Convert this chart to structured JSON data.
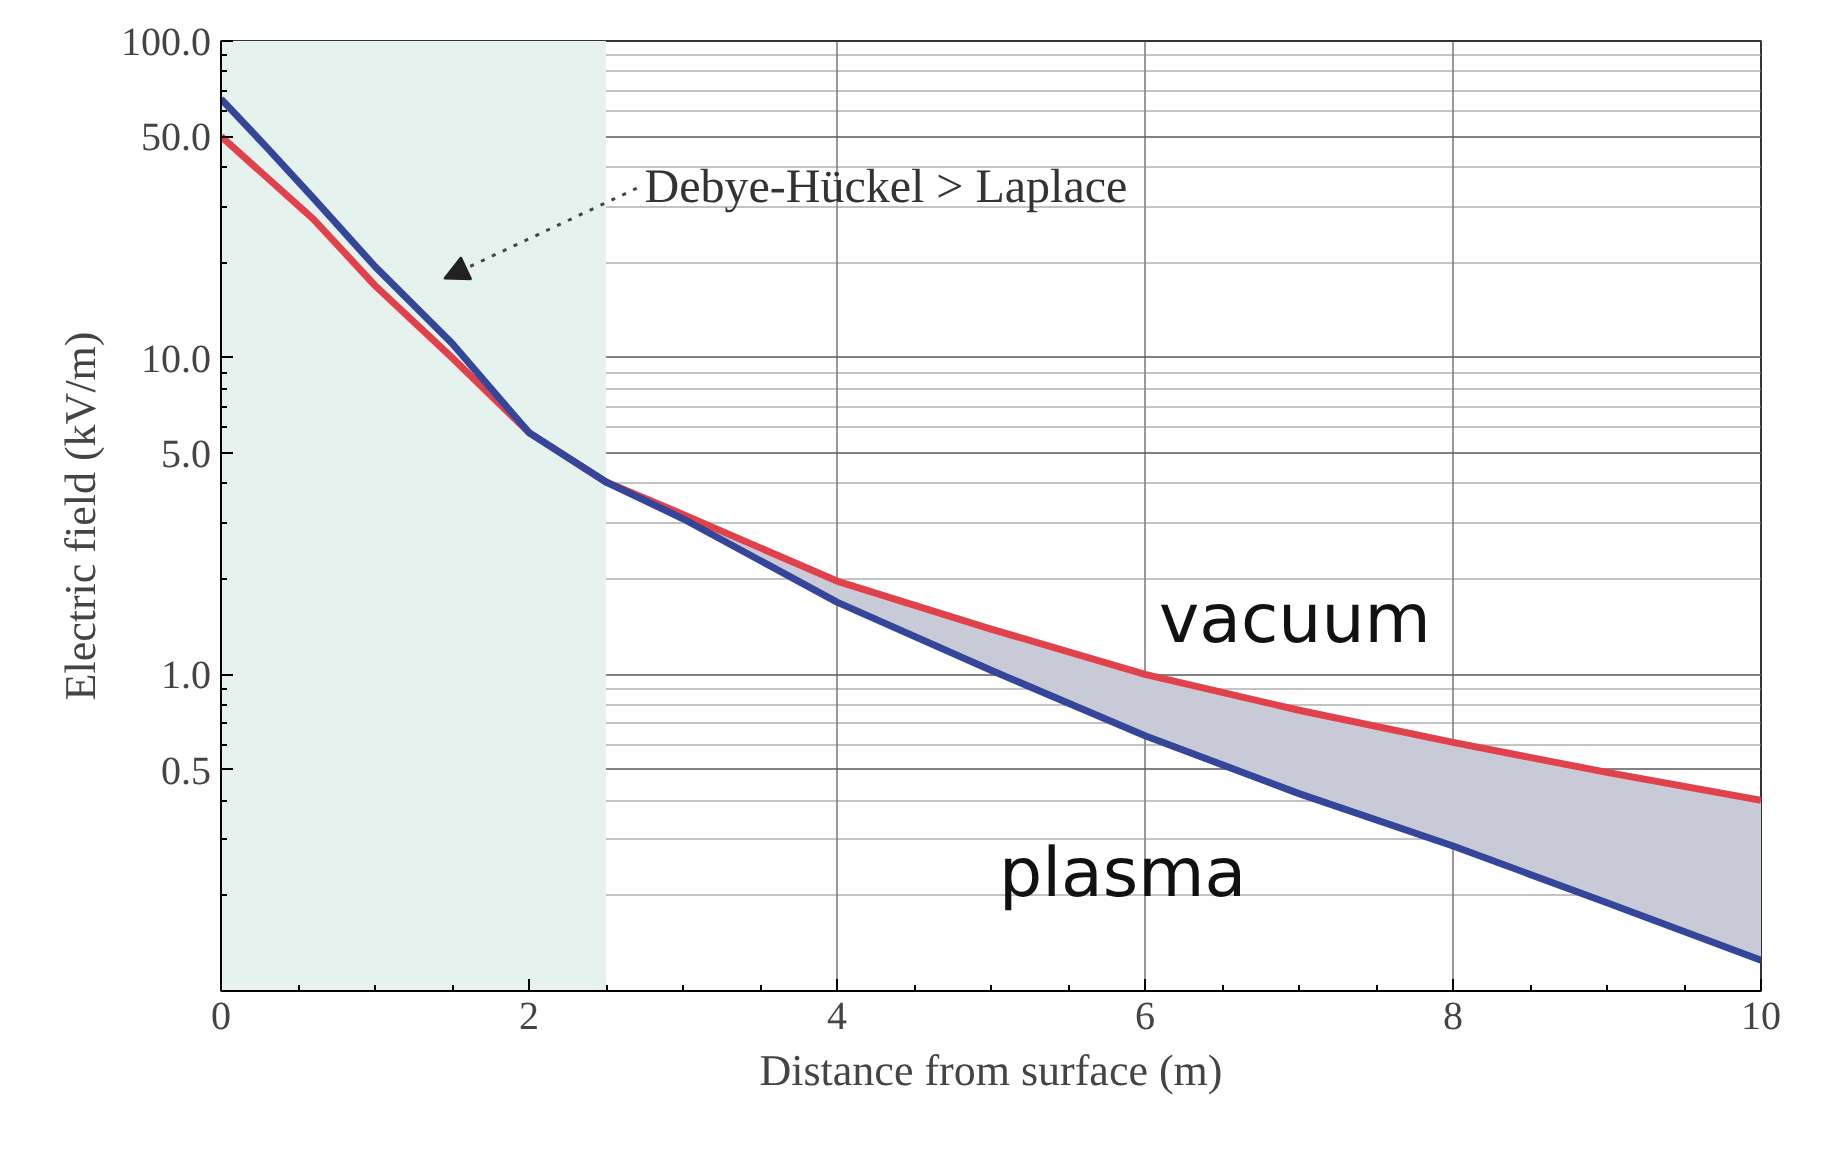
{
  "chart_data": {
    "type": "line",
    "xlabel": "Distance from surface (m)",
    "ylabel": "Electric field (kV/m)",
    "x": [
      0,
      0.3,
      0.6,
      1,
      1.5,
      2,
      2.5,
      3,
      4,
      5,
      6,
      7,
      8,
      9,
      10
    ],
    "series": [
      {
        "name": "vacuum",
        "color": "#e0414b",
        "values": [
          50,
          37,
          27.4,
          16.9,
          10,
          5.8,
          4.05,
          3.2,
          1.97,
          1.39,
          1.0,
          0.77,
          0.61,
          0.49,
          0.4
        ]
      },
      {
        "name": "plasma",
        "color": "#34469a",
        "values": [
          65.6,
          46,
          31.9,
          19.4,
          11.1,
          5.8,
          4.05,
          3.1,
          1.69,
          1.03,
          0.64,
          0.42,
          0.287,
          0.19,
          0.125
        ],
        "lower": [
          null,
          null,
          null,
          null,
          null,
          null,
          null,
          3.1,
          1.69,
          1.03,
          0.64,
          0.42,
          0.287,
          0.19,
          0.125
        ],
        "upper": [
          null,
          null,
          null,
          null,
          null,
          null,
          null,
          3.2,
          1.97,
          1.39,
          1.0,
          0.77,
          0.61,
          0.49,
          0.4
        ]
      }
    ],
    "log": "y",
    "xlim": [
      0,
      10
    ],
    "ylim": [
      0.1,
      100
    ],
    "xticks": [
      0,
      2,
      4,
      6,
      8,
      10
    ],
    "yticks": [
      {
        "value": 0.5,
        "label": "0.5"
      },
      {
        "value": 1,
        "label": "1.0"
      },
      {
        "value": 5,
        "label": "5.0"
      },
      {
        "value": 10,
        "label": "10.0"
      },
      {
        "value": 50,
        "label": "50.0"
      },
      {
        "value": 100,
        "label": "100.0"
      }
    ],
    "grid": true,
    "marker": "none",
    "line_style": "solid",
    "bands": [
      {
        "axis": "x",
        "from": 0,
        "to": 2.5,
        "color": "#e6f2ee"
      }
    ],
    "annotations": [
      "Debye-Hückel > Laplace"
    ]
  }
}
